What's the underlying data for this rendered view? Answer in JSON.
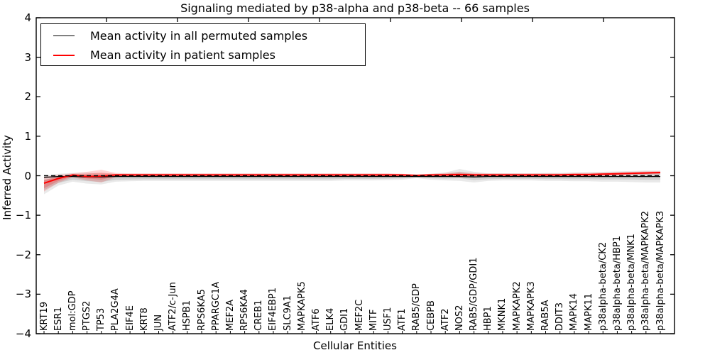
{
  "chart_data": {
    "type": "line",
    "title": "Signaling mediated by p38-alpha and p38-beta -- 66 samples",
    "xlabel": "Cellular Entities",
    "ylabel": "Inferred Activity",
    "ylim": [
      -4,
      4
    ],
    "yticks": [
      "4",
      "3",
      "2",
      "1",
      "0",
      "−1",
      "−2",
      "−3",
      "−4"
    ],
    "grid": false,
    "legend_position": "upper left",
    "zero_line": {
      "style": "dashed",
      "color": "#000000",
      "y": 0
    },
    "categories": [
      "KRT19",
      "ESR1",
      "mol:GDP",
      "PTGS2",
      "TP53",
      "PLA2G4A",
      "EIF4E",
      "KRT8",
      "JUN",
      "ATF2/c-Jun",
      "HSPB1",
      "RPS6KA5",
      "PPARGC1A",
      "MEF2A",
      "RPS6KA4",
      "CREB1",
      "EIF4EBP1",
      "SLC9A1",
      "MAPKAPK5",
      "ATF6",
      "ELK4",
      "GDI1",
      "MEF2C",
      "MITF",
      "USF1",
      "ATF1",
      "RAB5/GDP",
      "CEBPB",
      "ATF2",
      "NOS2",
      "RAB5/GDP/GDI1",
      "HBP1",
      "MKNK1",
      "MAPKAPK2",
      "MAPKAPK3",
      "RAB5A",
      "DDIT3",
      "MAPK14",
      "MAPK11",
      "p38alpha-beta/CK2",
      "p38alpha-beta/HBP1",
      "p38alpha-beta/MNK1",
      "p38alpha-beta/MAPKAPK2",
      "p38alpha-beta/MAPKAPK3"
    ],
    "series": [
      {
        "name": "Mean activity in all permuted samples",
        "color": "#000000",
        "values": [
          -0.04,
          -0.02,
          -0.02,
          -0.03,
          -0.03,
          -0.02,
          -0.02,
          -0.02,
          -0.02,
          -0.02,
          -0.02,
          -0.02,
          -0.02,
          -0.02,
          -0.02,
          -0.02,
          -0.02,
          -0.02,
          -0.02,
          -0.02,
          -0.02,
          -0.02,
          -0.02,
          -0.02,
          -0.02,
          -0.02,
          -0.02,
          -0.02,
          -0.02,
          -0.02,
          -0.03,
          -0.02,
          -0.02,
          -0.02,
          -0.02,
          -0.02,
          -0.02,
          -0.02,
          -0.02,
          -0.02,
          -0.02,
          -0.02,
          -0.02,
          -0.02
        ]
      },
      {
        "name": "Mean activity in patient samples",
        "color": "#ff0000",
        "values": [
          -0.19,
          -0.07,
          0.02,
          -0.02,
          -0.01,
          0.02,
          0.02,
          0.02,
          0.02,
          0.02,
          0.02,
          0.02,
          0.02,
          0.02,
          0.02,
          0.02,
          0.02,
          0.02,
          0.02,
          0.02,
          0.02,
          0.02,
          0.02,
          0.02,
          0.02,
          0.02,
          0.01,
          0.02,
          0.02,
          0.03,
          0.02,
          0.02,
          0.02,
          0.02,
          0.02,
          0.02,
          0.02,
          0.03,
          0.03,
          0.04,
          0.05,
          0.06,
          0.07,
          0.08
        ]
      }
    ],
    "bands": [
      {
        "name": "permuted-samples-range",
        "color": "#787878",
        "upper": [
          0.0,
          0.05,
          0.07,
          0.08,
          0.06,
          0.05,
          0.05,
          0.05,
          0.05,
          0.05,
          0.05,
          0.05,
          0.05,
          0.05,
          0.05,
          0.05,
          0.05,
          0.05,
          0.05,
          0.05,
          0.05,
          0.05,
          0.05,
          0.05,
          0.05,
          0.04,
          0.02,
          0.05,
          0.08,
          0.17,
          0.1,
          0.06,
          0.06,
          0.06,
          0.06,
          0.07,
          0.07,
          0.08,
          0.09,
          0.1,
          0.11,
          0.12,
          0.13,
          0.13
        ],
        "lower": [
          -0.47,
          -0.25,
          -0.15,
          -0.2,
          -0.22,
          -0.15,
          -0.14,
          -0.13,
          -0.13,
          -0.13,
          -0.13,
          -0.13,
          -0.13,
          -0.13,
          -0.13,
          -0.13,
          -0.13,
          -0.13,
          -0.13,
          -0.13,
          -0.13,
          -0.12,
          -0.12,
          -0.12,
          -0.11,
          -0.1,
          -0.06,
          -0.1,
          -0.12,
          -0.13,
          -0.17,
          -0.13,
          -0.12,
          -0.12,
          -0.12,
          -0.13,
          -0.13,
          -0.14,
          -0.14,
          -0.15,
          -0.15,
          -0.16,
          -0.17,
          -0.17
        ]
      },
      {
        "name": "patient-samples-range",
        "color": "#ff0000",
        "upper": [
          -0.03,
          0.02,
          0.06,
          0.1,
          0.15,
          0.07,
          0.06,
          0.06,
          0.06,
          0.06,
          0.06,
          0.06,
          0.06,
          0.06,
          0.06,
          0.06,
          0.06,
          0.06,
          0.06,
          0.06,
          0.06,
          0.06,
          0.06,
          0.06,
          0.06,
          0.05,
          0.03,
          0.05,
          0.07,
          0.09,
          0.07,
          0.06,
          0.06,
          0.06,
          0.06,
          0.06,
          0.06,
          0.07,
          0.07,
          0.08,
          0.09,
          0.1,
          0.11,
          0.12
        ],
        "lower": [
          -0.4,
          -0.18,
          -0.04,
          -0.12,
          -0.17,
          -0.04,
          -0.02,
          -0.02,
          -0.02,
          -0.02,
          -0.02,
          -0.02,
          -0.02,
          -0.02,
          -0.02,
          -0.02,
          -0.02,
          -0.02,
          -0.02,
          -0.02,
          -0.02,
          -0.02,
          -0.02,
          -0.02,
          -0.02,
          -0.02,
          -0.01,
          -0.02,
          -0.02,
          -0.05,
          -0.03,
          -0.02,
          -0.02,
          -0.02,
          -0.02,
          -0.02,
          -0.02,
          -0.01,
          -0.01,
          0.0,
          0.01,
          0.02,
          0.03,
          0.04
        ]
      }
    ]
  }
}
